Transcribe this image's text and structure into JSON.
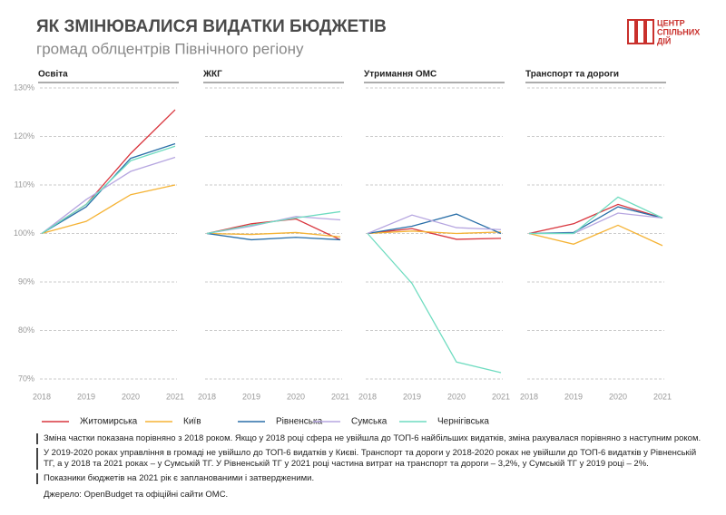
{
  "title": "ЯК ЗМІНЮВАЛИСЯ ВИДАТКИ БЮДЖЕТІВ",
  "subtitle": "громад облцентрів Північного регіону",
  "logo": [
    "ЦЕНТР",
    "СПІЛЬНИХ",
    "ДІЙ"
  ],
  "notes": [
    "Зміна частки показана порівняно з 2018 роком. Якщо у 2018 році сфера не увійшла до ТОП-6 найбільших видатків, зміна рахувалася порівняно з наступним роком.",
    "У 2019-2020 роках управління в громаді не увійшло до ТОП-6 видатків у Києві. Транспорт та дороги у 2018-2020 роках не увійшли до ТОП-6 видатків у Рівненській ТГ, а у 2018 та 2021 роках – у Сумській ТГ. У Рівненській ТГ у 2021 році частина витрат на транспорт та дороги – 3,2%, у Сумській ТГ у 2019 році – 2%.",
    "Показники бюджетів на 2021 рік є запланованими і затвердженими."
  ],
  "source": "Джерело: OpenBudget та офіційні сайти ОМС.",
  "chart_data": [
    {
      "type": "line",
      "title": "Освіта",
      "x": [
        2018,
        2019,
        2020,
        2021
      ],
      "xlim": [
        2018,
        2021
      ],
      "ylim": [
        70,
        130
      ],
      "yticks": [
        {
          "value": 70,
          "label": "70%"
        },
        {
          "value": 80,
          "label": "80%"
        },
        {
          "value": 90,
          "label": "90%"
        },
        {
          "value": 100,
          "label": "100%"
        },
        {
          "value": 110,
          "label": "110%"
        },
        {
          "value": 120,
          "label": "120%"
        },
        {
          "value": 130,
          "label": "130%"
        }
      ],
      "series": [
        {
          "name": "Житомирська",
          "color": "#d9363e",
          "values": [
            100,
            106,
            116.5,
            125.5
          ]
        },
        {
          "name": "Київ",
          "color": "#f5b335",
          "values": [
            100,
            102.5,
            108,
            110
          ]
        },
        {
          "name": "Рівненська",
          "color": "#2a6fa8",
          "values": [
            100,
            105.5,
            115.5,
            118.5
          ]
        },
        {
          "name": "Сумська",
          "color": "#b6a6e0",
          "values": [
            100,
            107,
            112.8,
            115.7
          ]
        },
        {
          "name": "Чернігівська",
          "color": "#6fdcc0",
          "values": [
            100,
            106,
            115,
            118
          ]
        }
      ]
    },
    {
      "type": "line",
      "title": "ЖКГ",
      "x": [
        2018,
        2019,
        2020,
        2021
      ],
      "xlim": [
        2018,
        2021
      ],
      "ylim": [
        70,
        130
      ],
      "yticks": [
        70,
        80,
        90,
        100,
        110,
        120,
        130
      ],
      "series": [
        {
          "color": "#d9363e",
          "values": [
            100,
            102,
            103,
            98.7
          ]
        },
        {
          "color": "#f5b335",
          "values": [
            100,
            99.8,
            100.2,
            99.3
          ]
        },
        {
          "color": "#2a6fa8",
          "values": [
            100,
            98.7,
            99.2,
            98.7
          ]
        },
        {
          "color": "#b6a6e0",
          "values": [
            100,
            101.5,
            103.5,
            102.8
          ]
        },
        {
          "color": "#6fdcc0",
          "values": [
            100,
            101.7,
            103.2,
            104.5
          ]
        }
      ]
    },
    {
      "type": "line",
      "title": "Утримання ОМС",
      "x": [
        2018,
        2019,
        2020,
        2021
      ],
      "xlim": [
        2018,
        2021
      ],
      "ylim": [
        70,
        130
      ],
      "yticks": [
        70,
        80,
        90,
        100,
        110,
        120,
        130
      ],
      "series": [
        {
          "color": "#d9363e",
          "values": [
            100,
            101,
            98.8,
            99
          ]
        },
        {
          "color": "#f5b335",
          "values": [
            100,
            100.5,
            100,
            100.3
          ]
        },
        {
          "color": "#2a6fa8",
          "values": [
            100,
            101.5,
            104,
            100
          ]
        },
        {
          "color": "#b6a6e0",
          "values": [
            100,
            103.8,
            101.2,
            100.8
          ]
        },
        {
          "color": "#6fdcc0",
          "values": [
            100,
            89.7,
            73.5,
            71.3
          ]
        }
      ]
    },
    {
      "type": "line",
      "title": "Транспорт та дороги",
      "x": [
        2018,
        2019,
        2020,
        2021
      ],
      "xlim": [
        2018,
        2021
      ],
      "ylim": [
        70,
        130
      ],
      "yticks": [
        70,
        80,
        90,
        100,
        110,
        120,
        130
      ],
      "series": [
        {
          "color": "#d9363e",
          "values": [
            100,
            102,
            106,
            103.2
          ]
        },
        {
          "color": "#f5b335",
          "values": [
            100,
            97.8,
            101.7,
            97.5
          ]
        },
        {
          "color": "#2a6fa8",
          "values": [
            100,
            100.2,
            105.5,
            103.2
          ]
        },
        {
          "color": "#b6a6e0",
          "values": [
            100,
            100,
            104.2,
            103.2
          ]
        },
        {
          "color": "#6fdcc0",
          "values": [
            100,
            100,
            107.5,
            103.2
          ]
        }
      ]
    }
  ]
}
